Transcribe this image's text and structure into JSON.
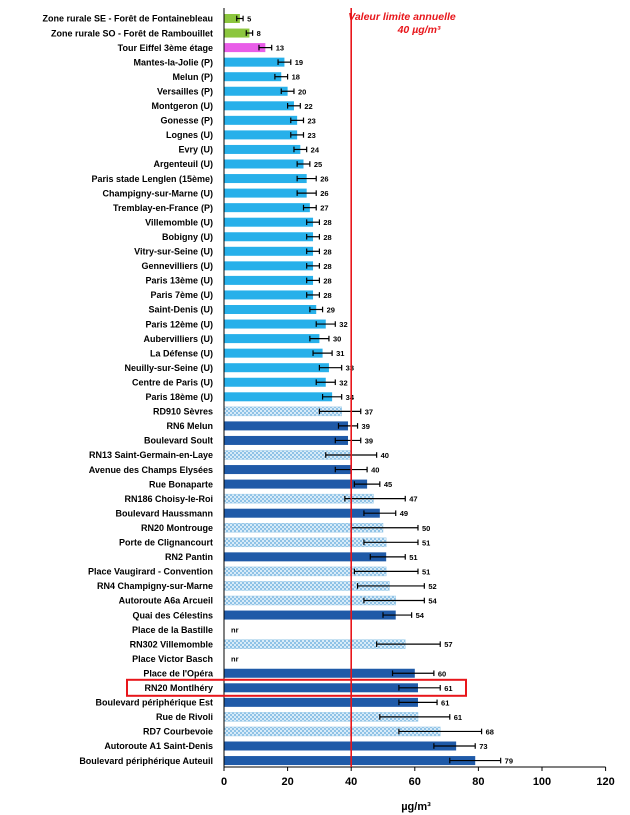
{
  "chart_data": {
    "type": "bar",
    "orientation": "horizontal",
    "xlabel": "µg/m³",
    "xlim": [
      0,
      120
    ],
    "xticks": [
      0,
      20,
      40,
      60,
      80,
      100,
      120
    ],
    "grid": false,
    "limit_line": {
      "value": 40,
      "label_line1": "Valeur limite annuelle",
      "label_line2": "40 µg/m³",
      "color": "#e8161b"
    },
    "highlighted": "RN20 Montlhéry",
    "colors": {
      "rural": "#8cc63e",
      "tower": "#e95de8",
      "urban": "#27b0ea",
      "traffic": "#1f5aa8",
      "traffic_pattern": "#8fc2e6",
      "highlight_box": "#e8161b"
    },
    "categories": [
      "Zone rurale SE - Forêt de Fontainebleau",
      "Zone rurale SO - Forêt de Rambouillet",
      "Tour Eiffel 3ème étage",
      "Mantes-la-Jolie (P)",
      "Melun (P)",
      "Versailles (P)",
      "Montgeron (U)",
      "Gonesse (P)",
      "Lognes (U)",
      "Evry (U)",
      "Argenteuil (U)",
      "Paris stade Lenglen (15ème)",
      "Champigny-sur-Marne (U)",
      "Tremblay-en-France (P)",
      "Villemomble (U)",
      "Bobigny (U)",
      "Vitry-sur-Seine (U)",
      "Gennevilliers (U)",
      "Paris 13ème (U)",
      "Paris 7ème (U)",
      "Saint-Denis (U)",
      "Paris 12ème (U)",
      "Aubervilliers (U)",
      "La Défense (U)",
      "Neuilly-sur-Seine (U)",
      "Centre de Paris (U)",
      "Paris 18ème (U)",
      "RD910 Sèvres",
      "RN6 Melun",
      "Boulevard Soult",
      "RN13 Saint-Germain-en-Laye",
      "Avenue des Champs Elysées",
      "Rue Bonaparte",
      "RN186 Choisy-le-Roi",
      "Boulevard Haussmann",
      "RN20 Montrouge",
      "Porte de Clignancourt",
      "RN2 Pantin",
      "Place Vaugirard - Convention",
      "RN4 Champigny-sur-Marne",
      "Autoroute A6a Arcueil",
      "Quai des Célestins",
      "Place de la Bastille",
      "RN302 Villemomble",
      "Place Victor Basch",
      "Place de l'Opéra",
      "RN20 Montlhéry",
      "Boulevard périphérique Est",
      "Rue de Rivoli",
      "RD7 Courbevoie",
      "Autoroute A1 Saint-Denis",
      "Boulevard périphérique Auteuil"
    ],
    "values": [
      5,
      8,
      13,
      19,
      18,
      20,
      22,
      23,
      23,
      24,
      25,
      26,
      26,
      27,
      28,
      28,
      28,
      28,
      28,
      28,
      29,
      32,
      30,
      31,
      33,
      32,
      34,
      37,
      39,
      39,
      40,
      40,
      45,
      47,
      49,
      50,
      51,
      51,
      51,
      52,
      54,
      54,
      null,
      57,
      null,
      60,
      61,
      61,
      61,
      68,
      73,
      79
    ],
    "value_labels": [
      "5",
      "8",
      "13",
      "19",
      "18",
      "20",
      "22",
      "23",
      "23",
      "24",
      "25",
      "26",
      "26",
      "27",
      "28",
      "28",
      "28",
      "28",
      "28",
      "28",
      "29",
      "32",
      "30",
      "31",
      "33",
      "32",
      "34",
      "37",
      "39",
      "39",
      "40",
      "40",
      "45",
      "47",
      "49",
      "50",
      "51",
      "51",
      "51",
      "52",
      "54",
      "54",
      "nr",
      "57",
      "nr",
      "60",
      "61",
      "61",
      "61",
      "68",
      "73",
      "79"
    ],
    "bar_styles": [
      "rural",
      "rural",
      "tower",
      "urban",
      "urban",
      "urban",
      "urban",
      "urban",
      "urban",
      "urban",
      "urban",
      "urban",
      "urban",
      "urban",
      "urban",
      "urban",
      "urban",
      "urban",
      "urban",
      "urban",
      "urban",
      "urban",
      "urban",
      "urban",
      "urban",
      "urban",
      "urban",
      "traffic_pattern",
      "traffic",
      "traffic",
      "traffic_pattern",
      "traffic",
      "traffic",
      "traffic_pattern",
      "traffic",
      "traffic_pattern",
      "traffic_pattern",
      "traffic",
      "traffic_pattern",
      "traffic_pattern",
      "traffic_pattern",
      "traffic",
      "none",
      "traffic_pattern",
      "none",
      "traffic",
      "traffic",
      "traffic",
      "traffic_pattern",
      "traffic_pattern",
      "traffic",
      "traffic"
    ],
    "error_low": [
      4,
      7,
      11,
      17,
      16,
      18,
      20,
      21,
      21,
      22,
      23,
      23,
      23,
      25,
      26,
      26,
      26,
      26,
      26,
      26,
      27,
      29,
      27,
      28,
      30,
      29,
      31,
      30,
      36,
      35,
      32,
      35,
      41,
      38,
      44,
      40,
      44,
      46,
      41,
      42,
      44,
      50,
      null,
      48,
      null,
      53,
      55,
      55,
      49,
      55,
      66,
      71
    ],
    "error_high": [
      6,
      9,
      15,
      21,
      20,
      22,
      24,
      25,
      25,
      26,
      27,
      29,
      29,
      29,
      30,
      30,
      30,
      30,
      30,
      30,
      31,
      35,
      33,
      34,
      37,
      35,
      37,
      43,
      42,
      43,
      48,
      45,
      49,
      57,
      54,
      61,
      61,
      57,
      61,
      63,
      63,
      59,
      null,
      68,
      null,
      66,
      68,
      67,
      71,
      81,
      79,
      87
    ]
  }
}
